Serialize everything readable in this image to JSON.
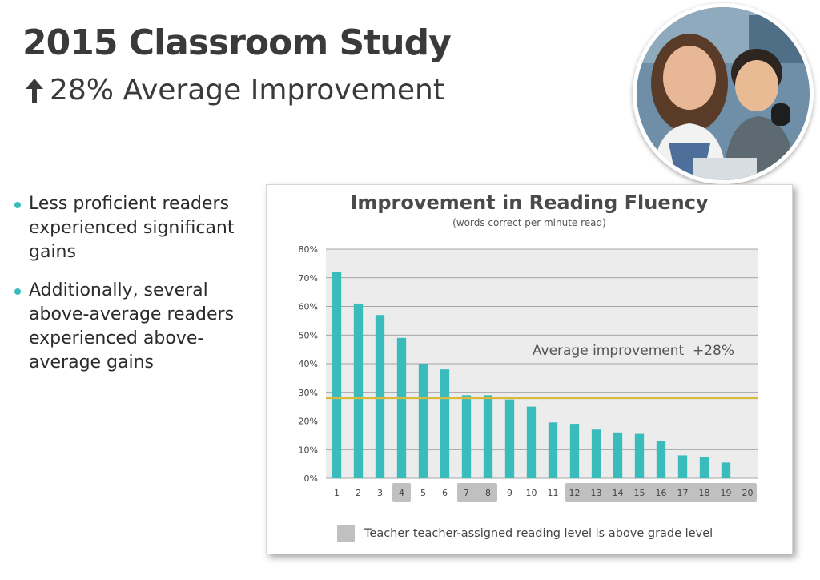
{
  "header": {
    "title": "2015 Classroom Study",
    "subtitle": "28% Average Improvement"
  },
  "bullets": [
    "Less proficient readers experienced significant gains",
    "Additionally, several above-average readers experienced above-average gains"
  ],
  "legend": {
    "text": "Teacher teacher-assigned reading level is above grade level"
  },
  "colors": {
    "bar": "#3bbcbc",
    "average_line": "#d9b93c",
    "highlight": "#c0c0c0",
    "bullet": "#3bbcbc"
  },
  "chart_data": {
    "type": "bar",
    "title": "Improvement in Reading Fluency",
    "subtitle": "(words correct per minute read)",
    "xlabel": "",
    "ylabel": "",
    "categories": [
      "1",
      "2",
      "3",
      "4",
      "5",
      "6",
      "7",
      "8",
      "9",
      "10",
      "11",
      "12",
      "13",
      "14",
      "15",
      "16",
      "17",
      "18",
      "19",
      "20"
    ],
    "values": [
      72,
      61,
      57,
      49,
      40,
      38,
      29,
      29,
      27.5,
      25,
      19.5,
      19,
      17,
      16,
      15.5,
      13,
      8,
      7.5,
      5.5,
      0
    ],
    "ylim": [
      0,
      80
    ],
    "yticks": [
      0,
      10,
      20,
      30,
      40,
      50,
      60,
      70,
      80
    ],
    "ytick_labels": [
      "0%",
      "10%",
      "20%",
      "30%",
      "40%",
      "50%",
      "60%",
      "70%",
      "80%"
    ],
    "grid": true,
    "average": {
      "value": 28,
      "label": "Average improvement  +28%"
    },
    "highlighted_categories": [
      "4",
      "7",
      "8",
      "12",
      "13",
      "14",
      "15",
      "16",
      "17",
      "18",
      "19",
      "20"
    ],
    "legend_position": "bottom"
  }
}
